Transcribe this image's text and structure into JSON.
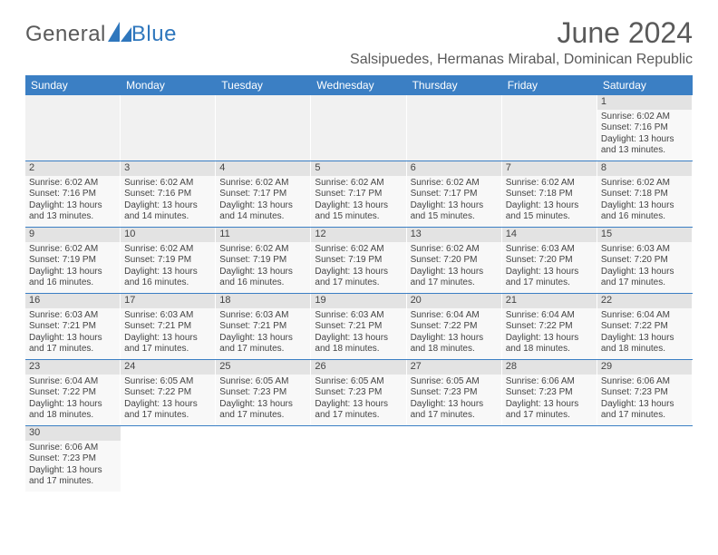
{
  "logo": {
    "word1": "General",
    "word2": "Blue",
    "sail_color": "#2f77bd",
    "text_color": "#5a5a5a"
  },
  "header": {
    "month_title": "June 2024",
    "location": "Salsipuedes, Hermanas Mirabal, Dominican Republic"
  },
  "colors": {
    "header_bar": "#3b7fc4",
    "daynum_bg": "#e3e3e3",
    "cell_bg": "#f8f8f8",
    "empty_bg": "#f1f1f1",
    "text": "#444444",
    "rule": "#3b7fc4"
  },
  "fonts": {
    "title_pt": 32,
    "location_pt": 16,
    "dow_pt": 12,
    "daynum_pt": 11,
    "body_pt": 10
  },
  "day_names": [
    "Sunday",
    "Monday",
    "Tuesday",
    "Wednesday",
    "Thursday",
    "Friday",
    "Saturday"
  ],
  "weeks": [
    [
      {
        "empty": true
      },
      {
        "empty": true
      },
      {
        "empty": true
      },
      {
        "empty": true
      },
      {
        "empty": true
      },
      {
        "empty": true
      },
      {
        "n": "1",
        "sunrise": "Sunrise: 6:02 AM",
        "sunset": "Sunset: 7:16 PM",
        "daylight": "Daylight: 13 hours and 13 minutes."
      }
    ],
    [
      {
        "n": "2",
        "sunrise": "Sunrise: 6:02 AM",
        "sunset": "Sunset: 7:16 PM",
        "daylight": "Daylight: 13 hours and 13 minutes."
      },
      {
        "n": "3",
        "sunrise": "Sunrise: 6:02 AM",
        "sunset": "Sunset: 7:16 PM",
        "daylight": "Daylight: 13 hours and 14 minutes."
      },
      {
        "n": "4",
        "sunrise": "Sunrise: 6:02 AM",
        "sunset": "Sunset: 7:17 PM",
        "daylight": "Daylight: 13 hours and 14 minutes."
      },
      {
        "n": "5",
        "sunrise": "Sunrise: 6:02 AM",
        "sunset": "Sunset: 7:17 PM",
        "daylight": "Daylight: 13 hours and 15 minutes."
      },
      {
        "n": "6",
        "sunrise": "Sunrise: 6:02 AM",
        "sunset": "Sunset: 7:17 PM",
        "daylight": "Daylight: 13 hours and 15 minutes."
      },
      {
        "n": "7",
        "sunrise": "Sunrise: 6:02 AM",
        "sunset": "Sunset: 7:18 PM",
        "daylight": "Daylight: 13 hours and 15 minutes."
      },
      {
        "n": "8",
        "sunrise": "Sunrise: 6:02 AM",
        "sunset": "Sunset: 7:18 PM",
        "daylight": "Daylight: 13 hours and 16 minutes."
      }
    ],
    [
      {
        "n": "9",
        "sunrise": "Sunrise: 6:02 AM",
        "sunset": "Sunset: 7:19 PM",
        "daylight": "Daylight: 13 hours and 16 minutes."
      },
      {
        "n": "10",
        "sunrise": "Sunrise: 6:02 AM",
        "sunset": "Sunset: 7:19 PM",
        "daylight": "Daylight: 13 hours and 16 minutes."
      },
      {
        "n": "11",
        "sunrise": "Sunrise: 6:02 AM",
        "sunset": "Sunset: 7:19 PM",
        "daylight": "Daylight: 13 hours and 16 minutes."
      },
      {
        "n": "12",
        "sunrise": "Sunrise: 6:02 AM",
        "sunset": "Sunset: 7:19 PM",
        "daylight": "Daylight: 13 hours and 17 minutes."
      },
      {
        "n": "13",
        "sunrise": "Sunrise: 6:02 AM",
        "sunset": "Sunset: 7:20 PM",
        "daylight": "Daylight: 13 hours and 17 minutes."
      },
      {
        "n": "14",
        "sunrise": "Sunrise: 6:03 AM",
        "sunset": "Sunset: 7:20 PM",
        "daylight": "Daylight: 13 hours and 17 minutes."
      },
      {
        "n": "15",
        "sunrise": "Sunrise: 6:03 AM",
        "sunset": "Sunset: 7:20 PM",
        "daylight": "Daylight: 13 hours and 17 minutes."
      }
    ],
    [
      {
        "n": "16",
        "sunrise": "Sunrise: 6:03 AM",
        "sunset": "Sunset: 7:21 PM",
        "daylight": "Daylight: 13 hours and 17 minutes."
      },
      {
        "n": "17",
        "sunrise": "Sunrise: 6:03 AM",
        "sunset": "Sunset: 7:21 PM",
        "daylight": "Daylight: 13 hours and 17 minutes."
      },
      {
        "n": "18",
        "sunrise": "Sunrise: 6:03 AM",
        "sunset": "Sunset: 7:21 PM",
        "daylight": "Daylight: 13 hours and 17 minutes."
      },
      {
        "n": "19",
        "sunrise": "Sunrise: 6:03 AM",
        "sunset": "Sunset: 7:21 PM",
        "daylight": "Daylight: 13 hours and 18 minutes."
      },
      {
        "n": "20",
        "sunrise": "Sunrise: 6:04 AM",
        "sunset": "Sunset: 7:22 PM",
        "daylight": "Daylight: 13 hours and 18 minutes."
      },
      {
        "n": "21",
        "sunrise": "Sunrise: 6:04 AM",
        "sunset": "Sunset: 7:22 PM",
        "daylight": "Daylight: 13 hours and 18 minutes."
      },
      {
        "n": "22",
        "sunrise": "Sunrise: 6:04 AM",
        "sunset": "Sunset: 7:22 PM",
        "daylight": "Daylight: 13 hours and 18 minutes."
      }
    ],
    [
      {
        "n": "23",
        "sunrise": "Sunrise: 6:04 AM",
        "sunset": "Sunset: 7:22 PM",
        "daylight": "Daylight: 13 hours and 18 minutes."
      },
      {
        "n": "24",
        "sunrise": "Sunrise: 6:05 AM",
        "sunset": "Sunset: 7:22 PM",
        "daylight": "Daylight: 13 hours and 17 minutes."
      },
      {
        "n": "25",
        "sunrise": "Sunrise: 6:05 AM",
        "sunset": "Sunset: 7:23 PM",
        "daylight": "Daylight: 13 hours and 17 minutes."
      },
      {
        "n": "26",
        "sunrise": "Sunrise: 6:05 AM",
        "sunset": "Sunset: 7:23 PM",
        "daylight": "Daylight: 13 hours and 17 minutes."
      },
      {
        "n": "27",
        "sunrise": "Sunrise: 6:05 AM",
        "sunset": "Sunset: 7:23 PM",
        "daylight": "Daylight: 13 hours and 17 minutes."
      },
      {
        "n": "28",
        "sunrise": "Sunrise: 6:06 AM",
        "sunset": "Sunset: 7:23 PM",
        "daylight": "Daylight: 13 hours and 17 minutes."
      },
      {
        "n": "29",
        "sunrise": "Sunrise: 6:06 AM",
        "sunset": "Sunset: 7:23 PM",
        "daylight": "Daylight: 13 hours and 17 minutes."
      }
    ],
    [
      {
        "n": "30",
        "sunrise": "Sunrise: 6:06 AM",
        "sunset": "Sunset: 7:23 PM",
        "daylight": "Daylight: 13 hours and 17 minutes."
      },
      {
        "empty_last": true
      },
      {
        "empty_last": true
      },
      {
        "empty_last": true
      },
      {
        "empty_last": true
      },
      {
        "empty_last": true
      },
      {
        "empty_last": true
      }
    ]
  ]
}
